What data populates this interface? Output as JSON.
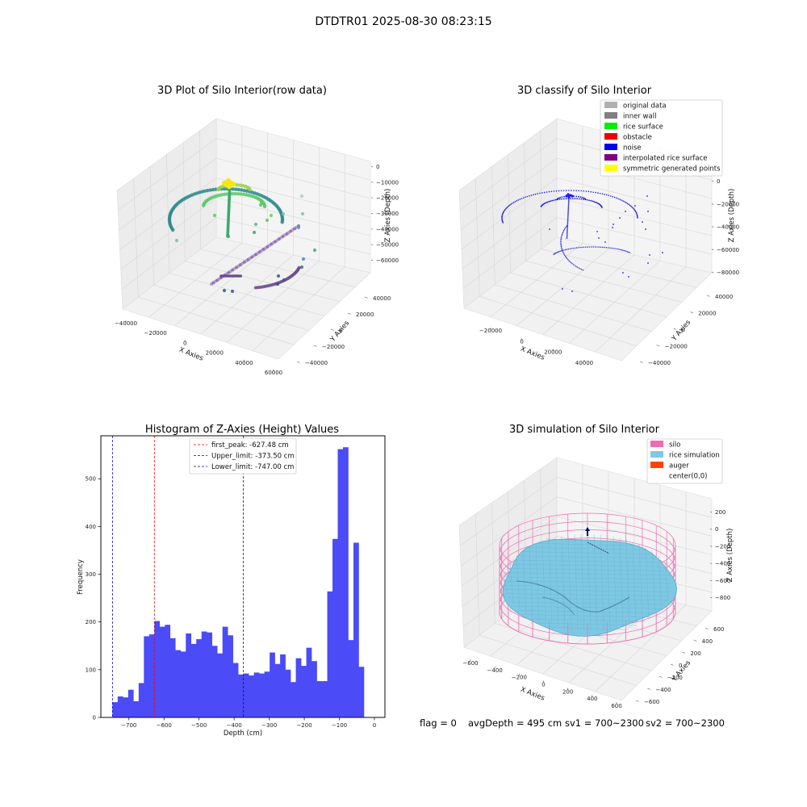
{
  "figure": {
    "suptitle": "DTDTR01 2025-08-30 08:23:15"
  },
  "colors": {
    "histogram_bar": "#4b4bf7",
    "peak_line": "#ff0000",
    "limit_line": "#0000cc",
    "silo_wire": "#f06ab0",
    "rice_surface": "#7ec8e3",
    "auger": "#ff4500",
    "pane_left": "#ececec",
    "pane_right": "#f4f4f4",
    "pane_floor": "#f1f1f1"
  },
  "status": {
    "flag": "flag = 0",
    "avg_depth": "avgDepth = 495 cm",
    "sv1": "sv1 = 700~2300",
    "sv2": "sv2 = 700~2300"
  },
  "chart_data": [
    {
      "type": "scatter",
      "projection": "3d",
      "title": "3D Plot of Silo Interior(row data)",
      "xlabel": "X Axies",
      "ylabel": "Y Axies",
      "zlabel": "Z Axies (Depth)",
      "xticks": [
        "−40000",
        "−20000",
        "0",
        "20000",
        "40000",
        "60000"
      ],
      "yticks": [
        "−40000",
        "−20000",
        "0",
        "20000",
        "40000"
      ],
      "zticks": [
        "0",
        "−10000",
        "−20000",
        "−30000",
        "−40000",
        "−50000",
        "−60000"
      ],
      "colormap": "viridis"
    },
    {
      "type": "scatter",
      "projection": "3d",
      "title": "3D classify of Silo Interior",
      "xlabel": "X Axies",
      "ylabel": "Y Axies",
      "zlabel": "Z Axies (Depth)",
      "xticks": [
        "−20000",
        "0",
        "20000",
        "40000"
      ],
      "yticks": [
        "−40000",
        "−20000",
        "0",
        "20000",
        "40000"
      ],
      "zticks": [
        "0",
        "−20000",
        "−40000",
        "−60000",
        "−80000"
      ],
      "legend": [
        {
          "label": "original data",
          "color": "#b0b0b0"
        },
        {
          "label": "inner wall",
          "color": "#808080"
        },
        {
          "label": "rice surface",
          "color": "#00ee00"
        },
        {
          "label": "obstacle",
          "color": "#ee0000"
        },
        {
          "label": "noise",
          "color": "#0000ee"
        },
        {
          "label": "interpolated rice surface",
          "color": "#800080"
        },
        {
          "label": "symmetric generated points",
          "color": "#ffff00"
        }
      ],
      "legend_position": "top-right"
    },
    {
      "type": "bar",
      "title": "Histogram of Z-Axies (Height) Values",
      "xlabel": "Depth (cm)",
      "ylabel": "Frequency",
      "xlim": [
        -780,
        30
      ],
      "ylim": [
        0,
        590
      ],
      "xticks": [
        -700,
        -600,
        -500,
        -400,
        -300,
        -200,
        -100,
        0
      ],
      "xtick_labels": [
        "−700",
        "−600",
        "−500",
        "−400",
        "−300",
        "−200",
        "−100",
        "0"
      ],
      "yticks": [
        0,
        100,
        200,
        300,
        400,
        500
      ],
      "yticks_labels": [
        "0",
        "100",
        "200",
        "300",
        "400",
        "500"
      ],
      "bin_start": -747,
      "bin_width": 14.94,
      "values": [
        32,
        44,
        42,
        58,
        34,
        72,
        170,
        174,
        202,
        190,
        194,
        166,
        141,
        138,
        176,
        154,
        164,
        180,
        178,
        150,
        134,
        190,
        172,
        114,
        90,
        92,
        88,
        94,
        92,
        96,
        136,
        112,
        132,
        100,
        74,
        124,
        108,
        146,
        118,
        76,
        76,
        264,
        374,
        562,
        566,
        162,
        366,
        106
      ],
      "lines": [
        {
          "label": "first_peak: -627.48 cm",
          "x": -627.48,
          "color": "#ff0000"
        },
        {
          "label": "Upper_limit: -373.50 cm",
          "x": -373.5,
          "color": "#0000cc"
        },
        {
          "label": "Lower_limit: -747.00 cm",
          "x": -747.0,
          "color": "#0000cc"
        }
      ],
      "legend_position": "top-center"
    },
    {
      "type": "surface",
      "projection": "3d",
      "title": "3D simulation of Silo Interior",
      "xlabel": "X Axies",
      "ylabel": "Y Axies",
      "zlabel": "Z Axies (Depth)",
      "xticks": [
        "−600",
        "−400",
        "−200",
        "0",
        "200",
        "400",
        "600"
      ],
      "yticks": [
        "−600",
        "−400",
        "−200",
        "0",
        "200",
        "400",
        "600"
      ],
      "zticks": [
        "200",
        "0",
        "−200",
        "−400",
        "−600",
        "−800"
      ],
      "legend": [
        {
          "label": "silo",
          "color": "#f06ab0"
        },
        {
          "label": "rice simulation",
          "color": "#7ec8e3"
        },
        {
          "label": "auger",
          "color": "#ff4500"
        },
        {
          "label": "center(0,0)",
          "color": ""
        }
      ],
      "legend_position": "top-right"
    }
  ]
}
